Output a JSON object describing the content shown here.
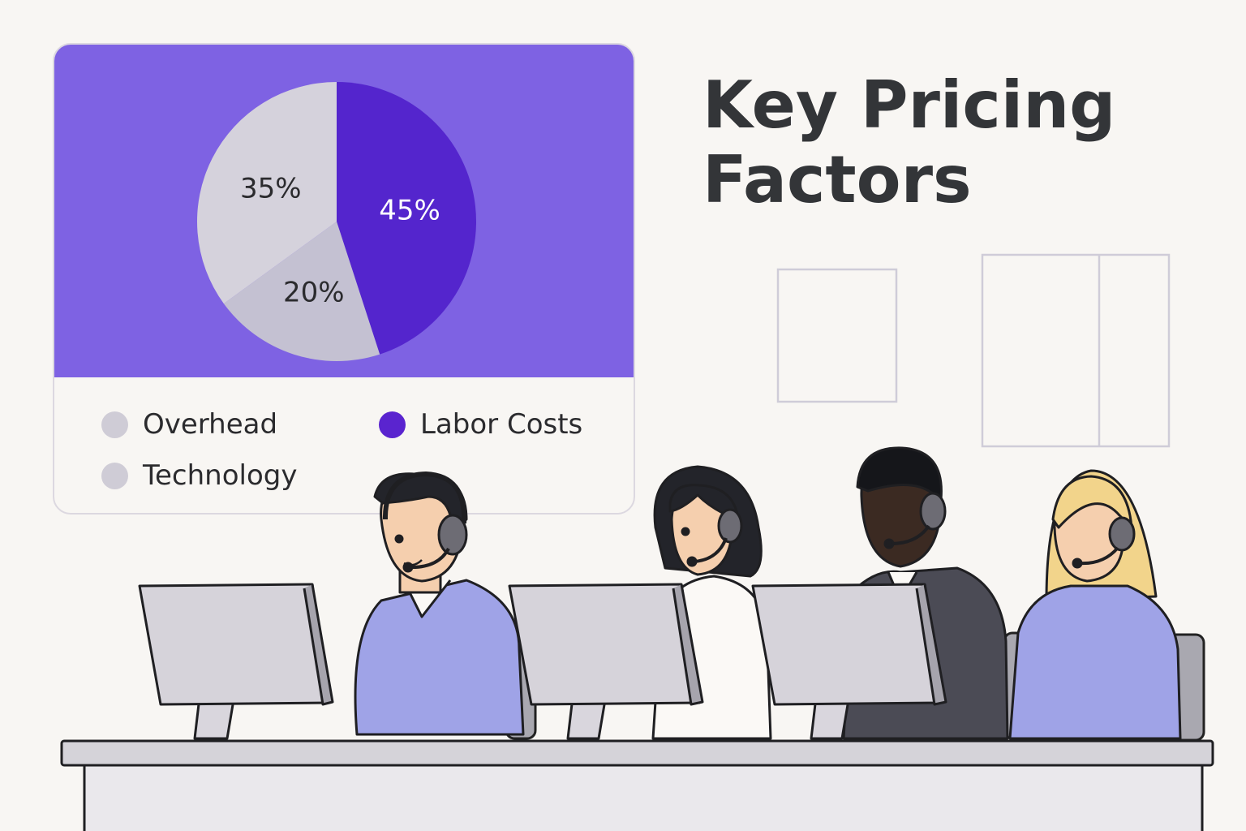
{
  "title": "Key Pricing Factors",
  "chart_data": {
    "type": "pie",
    "slices": [
      {
        "label": "Labor Costs",
        "value": 45,
        "display": "45%",
        "color": "#5425cd"
      },
      {
        "label": "Technology",
        "value": 20,
        "display": "20%",
        "color": "#c4c1d2"
      },
      {
        "label": "Overhead",
        "value": 35,
        "display": "35%",
        "color": "#d5d2dc"
      }
    ],
    "legend": [
      {
        "label": "Overhead",
        "color": "#cfccd6"
      },
      {
        "label": "Labor Costs",
        "color": "#5a24cf"
      },
      {
        "label": "Technology",
        "color": "#cfccd6"
      }
    ],
    "legend_position": "bottom",
    "background_color": "#7e62e3"
  }
}
